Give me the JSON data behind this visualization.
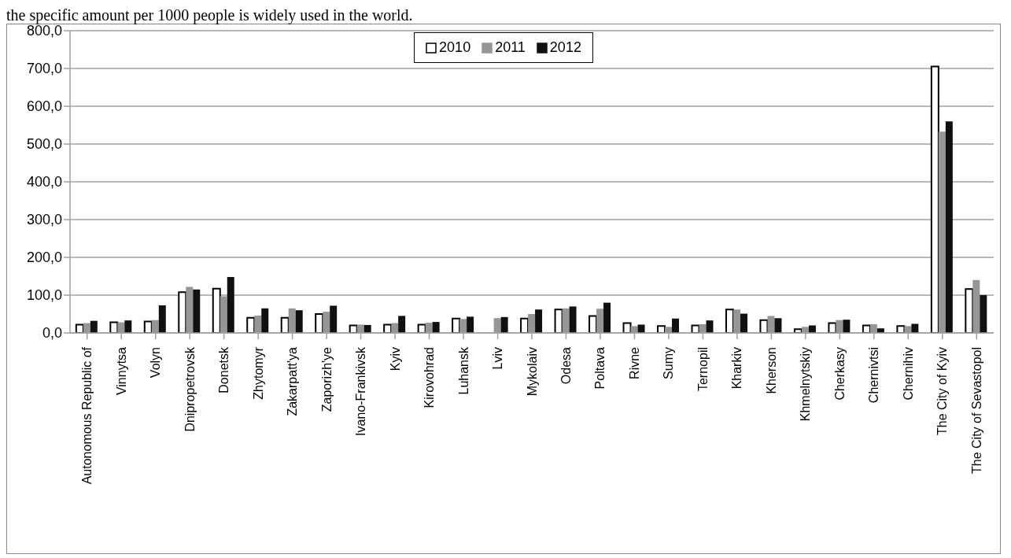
{
  "chart_data": {
    "type": "bar",
    "annotations": [
      "the specific amount per 1000 people is widely used in the world."
    ],
    "categories": [
      "Autonomous Republic of",
      "Vinnytsa",
      "Volyn",
      "Dnipropetrovsk",
      "Donetsk",
      "Zhytomyr",
      "Zakarpatt'ya",
      "Zaporizh'ye",
      "Ivano-Frankivsk",
      "Kyiv",
      "Kirovohrad",
      "Luhansk",
      "Lviv",
      "Mykolaiv",
      "Odesa",
      "Poltava",
      "Rivne",
      "Sumy",
      "Ternopil",
      "Kharkiv",
      "Kherson",
      "Khmelnytskiy",
      "Cherkasy",
      "Chernivtsi",
      "Chernihiv",
      "The City of Kyiv",
      "The City of Sevastopol"
    ],
    "series": [
      {
        "name": "2010",
        "color": "#ffffff",
        "values": [
          22,
          28,
          30,
          108,
          117,
          40,
          40,
          50,
          20,
          22,
          22,
          38,
          null,
          38,
          62,
          45,
          26,
          18,
          20,
          62,
          34,
          10,
          26,
          20,
          18,
          705,
          116
        ]
      },
      {
        "name": "2011",
        "color": "#969696",
        "values": [
          26,
          28,
          34,
          122,
          97,
          46,
          65,
          56,
          22,
          26,
          27,
          37,
          39,
          50,
          65,
          64,
          18,
          16,
          23,
          62,
          45,
          16,
          34,
          23,
          18,
          533,
          140
        ]
      },
      {
        "name": "2012",
        "color": "#101010",
        "values": [
          32,
          33,
          73,
          115,
          148,
          65,
          60,
          72,
          21,
          45,
          29,
          43,
          42,
          62,
          70,
          80,
          22,
          38,
          33,
          51,
          39,
          20,
          35,
          12,
          24,
          560,
          100
        ]
      }
    ],
    "ylim": [
      0,
      800
    ],
    "yticks": [
      {
        "value": 0,
        "label": "0,0"
      },
      {
        "value": 100,
        "label": "100,0"
      },
      {
        "value": 200,
        "label": "200,0"
      },
      {
        "value": 300,
        "label": "300,0"
      },
      {
        "value": 400,
        "label": "400,0"
      },
      {
        "value": 500,
        "label": "500,0"
      },
      {
        "value": 600,
        "label": "600,0"
      },
      {
        "value": 700,
        "label": "700,0"
      },
      {
        "value": 800,
        "label": "800,0"
      }
    ],
    "grid": "y",
    "legend": "top"
  }
}
